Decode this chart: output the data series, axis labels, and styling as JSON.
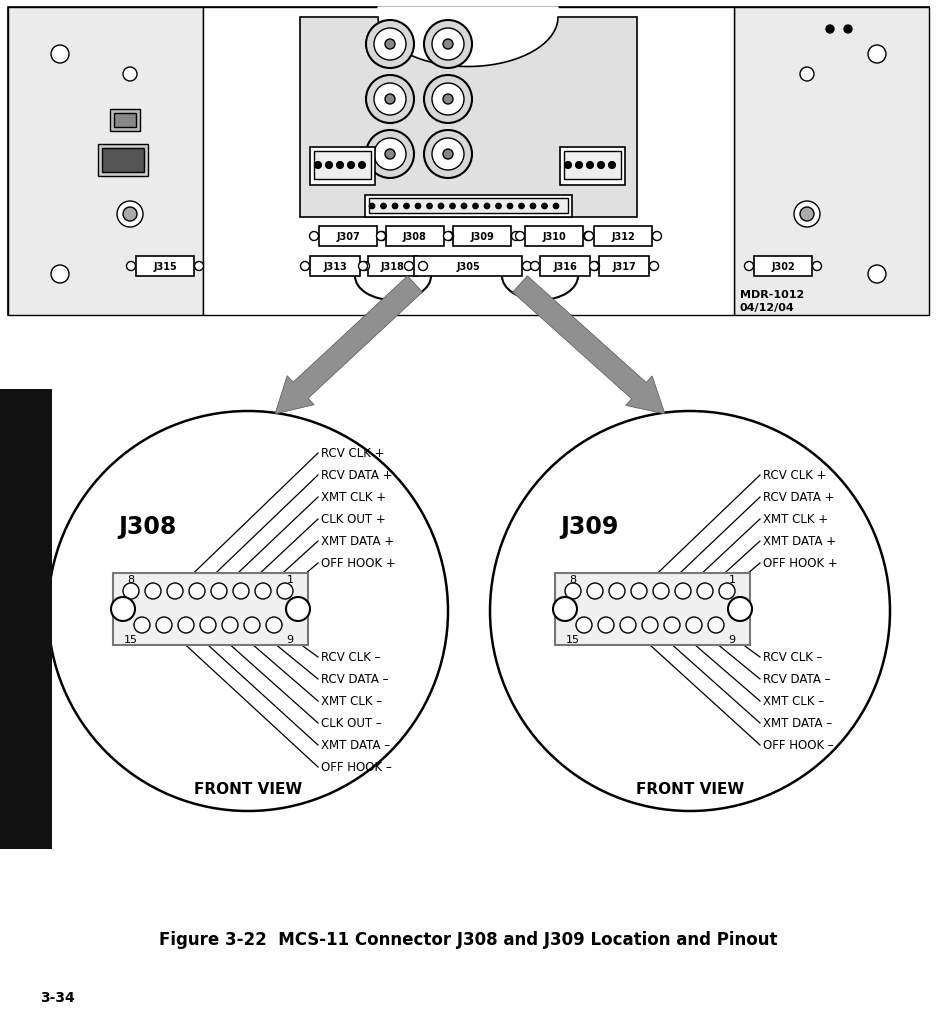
{
  "title": "Figure 3-22  MCS-11 Connector J308 and J309 Location and Pinout",
  "page_label": "3-34",
  "mdr_line1": "MDR-1012",
  "mdr_line2": "04/12/04",
  "background_color": "#ffffff",
  "j308_label": "J308",
  "j309_label": "J309",
  "front_view": "FRONT VIEW",
  "j308_upper_pins": [
    "OFF HOOK +",
    "XMT DATA +",
    "CLK OUT +",
    "XMT CLK +",
    "RCV DATA +",
    "RCV CLK +"
  ],
  "j308_lower_pins": [
    "RCV CLK –",
    "RCV DATA –",
    "XMT CLK –",
    "CLK OUT –",
    "XMT DATA –",
    "OFF HOOK –"
  ],
  "j309_upper_pins": [
    "OFF HOOK +",
    "XMT DATA +",
    "XMT CLK +",
    "RCV DATA +",
    "RCV CLK +"
  ],
  "j309_lower_pins": [
    "RCV CLK –",
    "RCV DATA –",
    "XMT CLK –",
    "XMT DATA –",
    "OFF HOOK –"
  ],
  "connector_labels_row1": [
    "J307",
    "J308",
    "J309",
    "J310",
    "J312"
  ],
  "connector_labels_row2_left": [
    "J315"
  ],
  "connector_labels_row2_mid": [
    "J313",
    "J318",
    "J305",
    "J316",
    "J317"
  ],
  "connector_labels_row2_right": [
    "J302"
  ]
}
